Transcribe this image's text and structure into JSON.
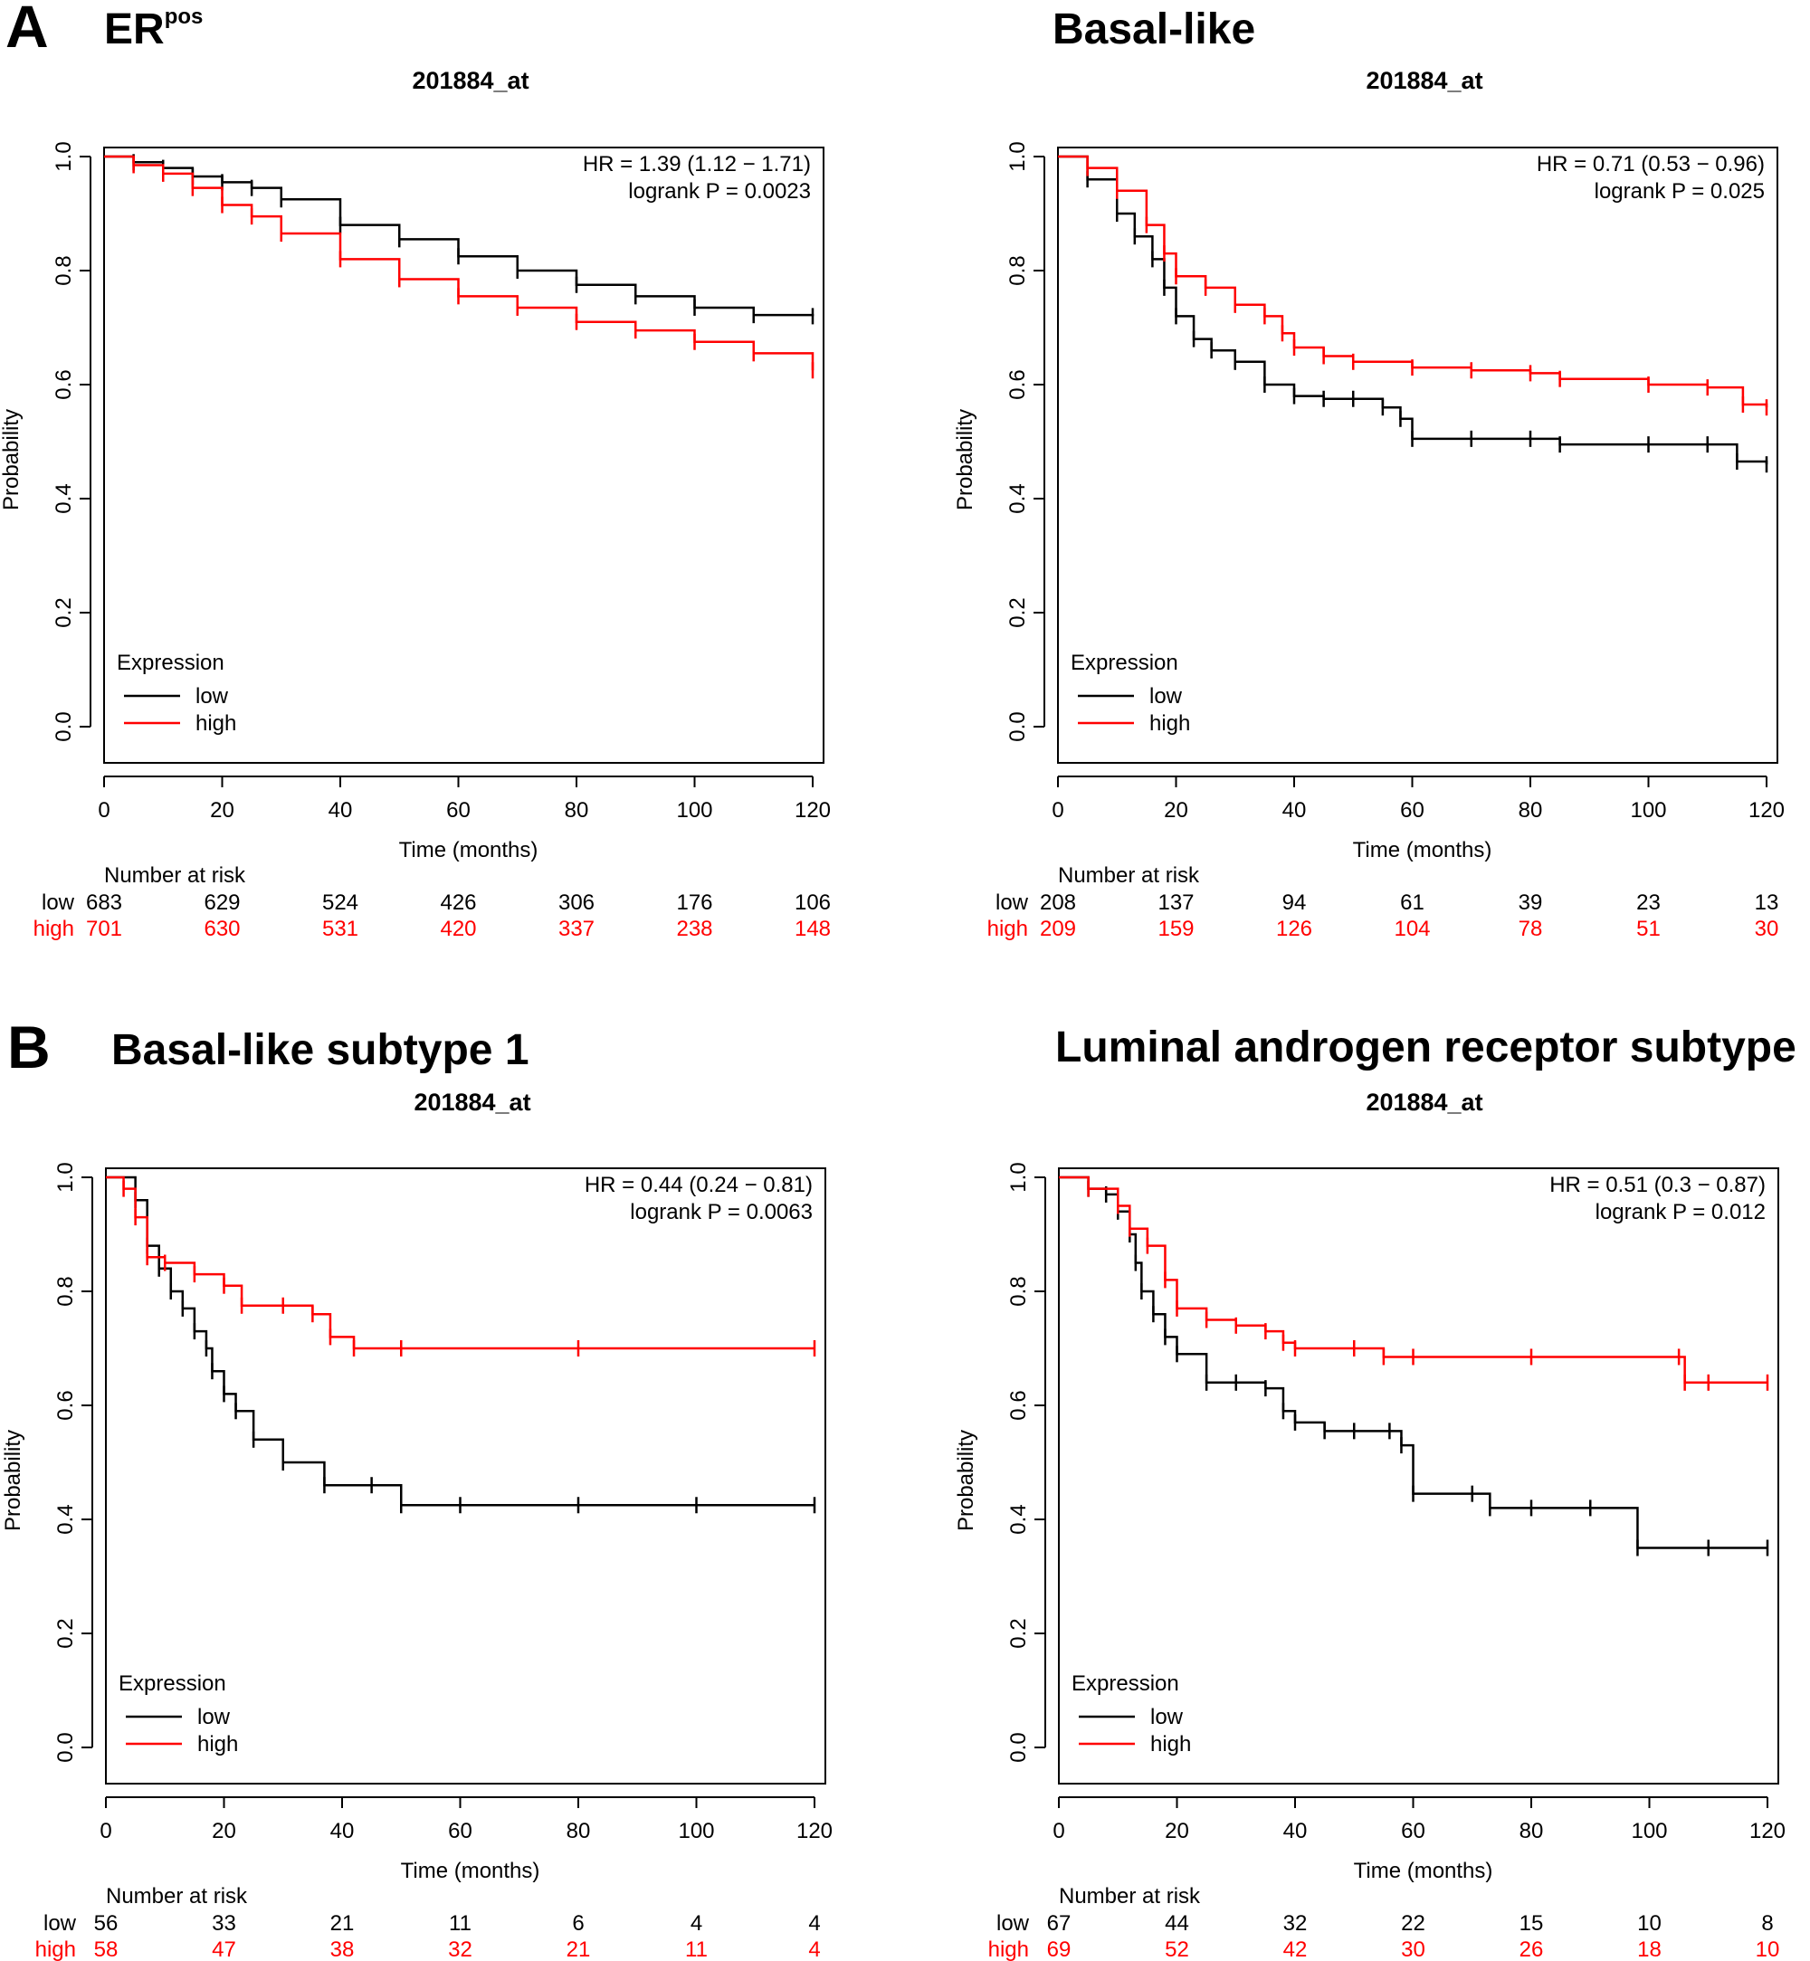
{
  "panels": [
    {
      "letter": "A"
    },
    {
      "letter": "B"
    }
  ],
  "chart_data": [
    {
      "type": "line",
      "title": "ER",
      "title_superscript": "pos",
      "subtitle": "201884_at",
      "xlabel": "Time (months)",
      "ylabel": "Probability",
      "xlim": [
        0,
        120
      ],
      "ylim": [
        0,
        1
      ],
      "x_ticks": [
        "0",
        "20",
        "40",
        "60",
        "80",
        "100",
        "120"
      ],
      "y_ticks": [
        "0.0",
        "0.2",
        "0.4",
        "0.6",
        "0.8",
        "1.0"
      ],
      "hr_text": "HR = 1.39 (1.12 − 1.71)",
      "p_text": "logrank P = 0.0023",
      "legend_title": "Expression",
      "legend_position": "bottom-left",
      "risk_title": "Number at risk",
      "series": [
        {
          "name": "low",
          "color": "#000000",
          "x": [
            0,
            5,
            10,
            15,
            20,
            25,
            30,
            40,
            50,
            60,
            70,
            80,
            90,
            100,
            110,
            120
          ],
          "y": [
            1.0,
            0.99,
            0.98,
            0.965,
            0.955,
            0.945,
            0.925,
            0.88,
            0.855,
            0.825,
            0.8,
            0.775,
            0.755,
            0.735,
            0.722,
            0.72
          ]
        },
        {
          "name": "high",
          "color": "#ff0000",
          "x": [
            0,
            5,
            10,
            15,
            20,
            25,
            30,
            40,
            50,
            60,
            70,
            80,
            90,
            100,
            110,
            120
          ],
          "y": [
            1.0,
            0.985,
            0.97,
            0.945,
            0.915,
            0.895,
            0.865,
            0.82,
            0.785,
            0.755,
            0.735,
            0.71,
            0.695,
            0.675,
            0.655,
            0.625
          ]
        }
      ],
      "risk": [
        {
          "label": "low",
          "color": "#000000",
          "values": [
            "683",
            "629",
            "524",
            "426",
            "306",
            "176",
            "106"
          ]
        },
        {
          "label": "high",
          "color": "#ff0000",
          "values": [
            "701",
            "630",
            "531",
            "420",
            "337",
            "238",
            "148"
          ]
        }
      ]
    },
    {
      "type": "line",
      "title": "Basal-like",
      "title_superscript": "",
      "subtitle": "201884_at",
      "xlabel": "Time (months)",
      "ylabel": "Probability",
      "xlim": [
        0,
        120
      ],
      "ylim": [
        0,
        1
      ],
      "x_ticks": [
        "0",
        "20",
        "40",
        "60",
        "80",
        "100",
        "120"
      ],
      "y_ticks": [
        "0.0",
        "0.2",
        "0.4",
        "0.6",
        "0.8",
        "1.0"
      ],
      "hr_text": "HR = 0.71 (0.53 − 0.96)",
      "p_text": "logrank P = 0.025",
      "legend_title": "Expression",
      "legend_position": "bottom-left",
      "risk_title": "Number at risk",
      "series": [
        {
          "name": "low",
          "color": "#000000",
          "x": [
            0,
            5,
            10,
            13,
            16,
            18,
            20,
            23,
            26,
            30,
            35,
            40,
            45,
            50,
            55,
            58,
            60,
            70,
            80,
            85,
            100,
            110,
            115,
            120
          ],
          "y": [
            1.0,
            0.96,
            0.9,
            0.86,
            0.82,
            0.77,
            0.72,
            0.68,
            0.66,
            0.64,
            0.6,
            0.58,
            0.575,
            0.575,
            0.56,
            0.54,
            0.505,
            0.505,
            0.505,
            0.495,
            0.495,
            0.495,
            0.465,
            0.46
          ]
        },
        {
          "name": "high",
          "color": "#ff0000",
          "x": [
            0,
            5,
            10,
            15,
            18,
            20,
            25,
            30,
            35,
            38,
            40,
            45,
            50,
            60,
            70,
            80,
            85,
            100,
            110,
            116,
            120
          ],
          "y": [
            1.0,
            0.98,
            0.94,
            0.88,
            0.83,
            0.79,
            0.77,
            0.74,
            0.72,
            0.69,
            0.665,
            0.65,
            0.64,
            0.63,
            0.625,
            0.62,
            0.61,
            0.6,
            0.595,
            0.565,
            0.56
          ]
        }
      ],
      "risk": [
        {
          "label": "low",
          "color": "#000000",
          "values": [
            "208",
            "137",
            "94",
            "61",
            "39",
            "23",
            "13"
          ]
        },
        {
          "label": "high",
          "color": "#ff0000",
          "values": [
            "209",
            "159",
            "126",
            "104",
            "78",
            "51",
            "30"
          ]
        }
      ]
    },
    {
      "type": "line",
      "title": "Basal-like subtype 1",
      "title_superscript": "",
      "subtitle": "201884_at",
      "xlabel": "Time (months)",
      "ylabel": "Probability",
      "xlim": [
        0,
        120
      ],
      "ylim": [
        0,
        1
      ],
      "x_ticks": [
        "0",
        "20",
        "40",
        "60",
        "80",
        "100",
        "120"
      ],
      "y_ticks": [
        "0.0",
        "0.2",
        "0.4",
        "0.6",
        "0.8",
        "1.0"
      ],
      "hr_text": "HR = 0.44 (0.24 − 0.81)",
      "p_text": "logrank P = 0.0063",
      "legend_title": "Expression",
      "legend_position": "bottom-left",
      "risk_title": "Number at risk",
      "series": [
        {
          "name": "low",
          "color": "#000000",
          "x": [
            0,
            5,
            7,
            9,
            11,
            13,
            15,
            17,
            18,
            20,
            22,
            25,
            30,
            37,
            45,
            50,
            60,
            80,
            100,
            120
          ],
          "y": [
            1.0,
            0.96,
            0.88,
            0.84,
            0.8,
            0.77,
            0.73,
            0.7,
            0.66,
            0.62,
            0.59,
            0.54,
            0.5,
            0.46,
            0.46,
            0.425,
            0.425,
            0.425,
            0.425,
            0.425
          ]
        },
        {
          "name": "high",
          "color": "#ff0000",
          "x": [
            0,
            3,
            5,
            7,
            10,
            15,
            20,
            23,
            30,
            35,
            38,
            42,
            50,
            80,
            120
          ],
          "y": [
            1.0,
            0.98,
            0.93,
            0.86,
            0.85,
            0.83,
            0.81,
            0.775,
            0.775,
            0.76,
            0.72,
            0.7,
            0.7,
            0.7,
            0.7
          ]
        }
      ],
      "risk": [
        {
          "label": "low",
          "color": "#000000",
          "values": [
            "56",
            "33",
            "21",
            "11",
            "6",
            "4",
            "4"
          ]
        },
        {
          "label": "high",
          "color": "#ff0000",
          "values": [
            "58",
            "47",
            "38",
            "32",
            "21",
            "11",
            "4"
          ]
        }
      ]
    },
    {
      "type": "line",
      "title": "Luminal androgen receptor subtype",
      "title_superscript": "",
      "subtitle": "201884_at",
      "xlabel": "Time (months)",
      "ylabel": "Probability",
      "xlim": [
        0,
        120
      ],
      "ylim": [
        0,
        1
      ],
      "x_ticks": [
        "0",
        "20",
        "40",
        "60",
        "80",
        "100",
        "120"
      ],
      "y_ticks": [
        "0.0",
        "0.2",
        "0.4",
        "0.6",
        "0.8",
        "1.0"
      ],
      "hr_text": "HR = 0.51 (0.3 − 0.87)",
      "p_text": "logrank P = 0.012",
      "legend_title": "Expression",
      "legend_position": "bottom-left",
      "risk_title": "Number at risk",
      "series": [
        {
          "name": "low",
          "color": "#000000",
          "x": [
            0,
            5,
            8,
            10,
            12,
            13,
            14,
            16,
            18,
            20,
            25,
            30,
            35,
            38,
            40,
            45,
            50,
            56,
            58,
            60,
            70,
            73,
            80,
            90,
            98,
            110,
            120
          ],
          "y": [
            1.0,
            0.98,
            0.97,
            0.94,
            0.9,
            0.85,
            0.8,
            0.76,
            0.72,
            0.69,
            0.64,
            0.64,
            0.63,
            0.59,
            0.57,
            0.555,
            0.555,
            0.555,
            0.53,
            0.445,
            0.445,
            0.42,
            0.42,
            0.42,
            0.35,
            0.35,
            0.35
          ]
        },
        {
          "name": "high",
          "color": "#ff0000",
          "x": [
            0,
            5,
            10,
            12,
            15,
            18,
            20,
            25,
            30,
            35,
            38,
            40,
            50,
            55,
            60,
            80,
            105,
            106,
            110,
            120
          ],
          "y": [
            1.0,
            0.98,
            0.95,
            0.91,
            0.88,
            0.82,
            0.77,
            0.75,
            0.74,
            0.73,
            0.71,
            0.7,
            0.7,
            0.685,
            0.685,
            0.685,
            0.685,
            0.64,
            0.64,
            0.64
          ]
        }
      ],
      "risk": [
        {
          "label": "low",
          "color": "#000000",
          "values": [
            "67",
            "44",
            "32",
            "22",
            "15",
            "10",
            "8"
          ]
        },
        {
          "label": "high",
          "color": "#ff0000",
          "values": [
            "69",
            "52",
            "42",
            "30",
            "26",
            "18",
            "10"
          ]
        }
      ]
    }
  ]
}
